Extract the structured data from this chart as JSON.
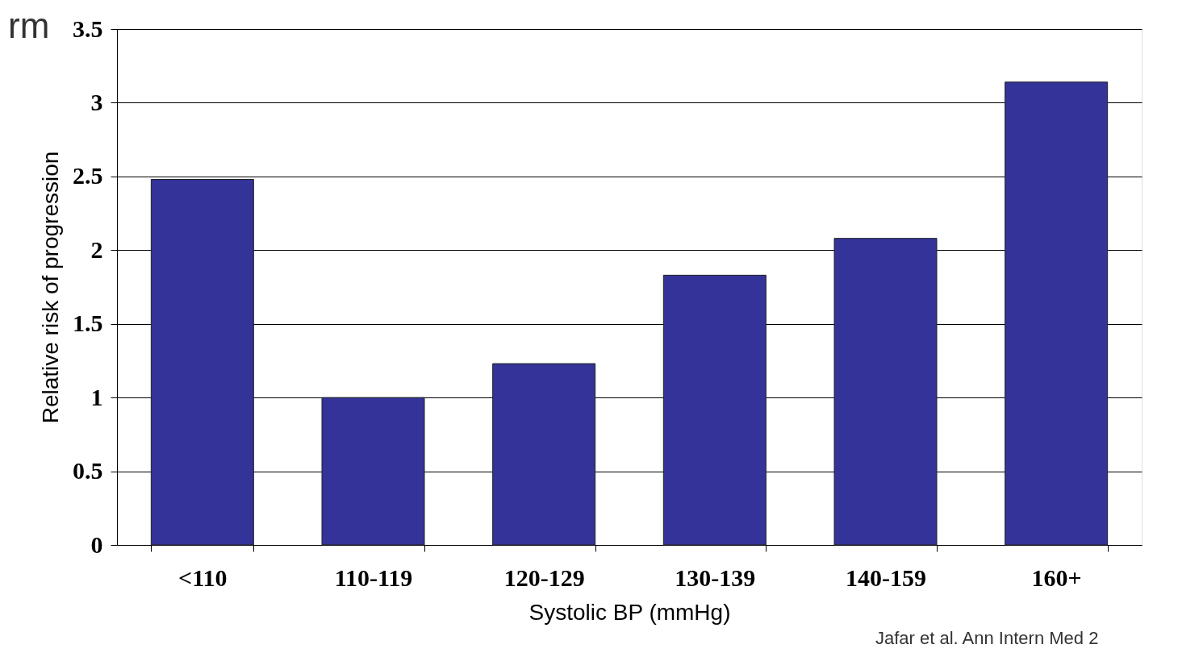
{
  "chart_data": {
    "type": "bar",
    "categories": [
      "<110",
      "110-119",
      "120-129",
      "130-139",
      "140-159",
      "160+"
    ],
    "values": [
      2.48,
      1.0,
      1.23,
      1.83,
      2.08,
      3.14
    ],
    "color": "#333399",
    "xlabel": "Systolic BP (mmHg)",
    "ylabel": "Relative risk of progression",
    "ylim": [
      0,
      3.5
    ],
    "yticks": [
      0,
      0.5,
      1,
      1.5,
      2,
      2.5,
      3,
      3.5
    ],
    "grid": "y",
    "annotations": [
      "rm",
      "Jafar et al. Ann Intern Med 2"
    ]
  }
}
